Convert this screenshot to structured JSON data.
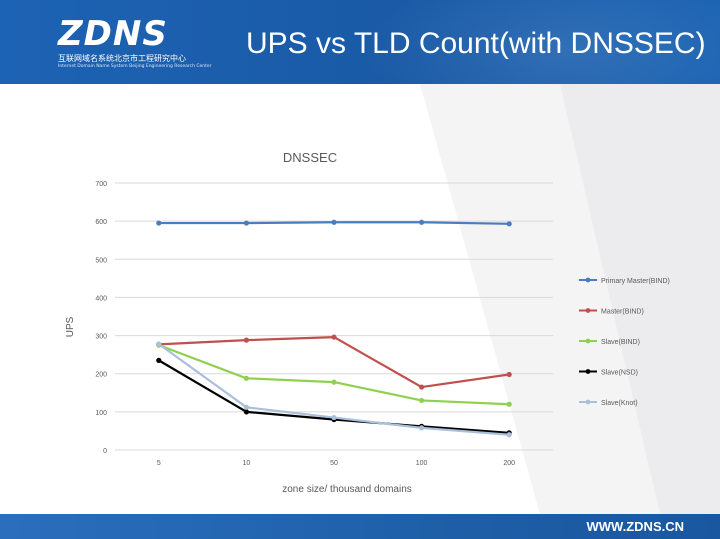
{
  "header": {
    "logo_text": "ZDNS",
    "logo_sub_cn": "互联网域名系统北京市工程研究中心",
    "logo_sub_en": "Internet Domain Name System Beijing Engineering Research Center",
    "title": "UPS vs TLD Count(with DNSSEC)"
  },
  "footer": {
    "url": "WWW.ZDNS.CN"
  },
  "colors": {
    "header_blue": "#1d63b4",
    "series": [
      "#4a7dc0",
      "#c0504d",
      "#8fd14f",
      "#000000",
      "#a9bfdb"
    ]
  },
  "chart_data": {
    "type": "line",
    "title": "DNSSEC",
    "xlabel": "zone size/ thousand domains",
    "ylabel": "UPS",
    "categories": [
      "5",
      "10",
      "50",
      "100",
      "200"
    ],
    "ylim": [
      0,
      700
    ],
    "yticks": [
      "0",
      "100",
      "200",
      "300",
      "400",
      "500",
      "600",
      "700"
    ],
    "grid": true,
    "legend_position": "right",
    "series": [
      {
        "name": "Primary Master(BIND)",
        "color": "#4a7dc0",
        "values": [
          595,
          595,
          597,
          597,
          593
        ]
      },
      {
        "name": "Master(BIND)",
        "color": "#c0504d",
        "values": [
          277,
          288,
          296,
          165,
          198
        ]
      },
      {
        "name": "Slave(BIND)",
        "color": "#8fd14f",
        "values": [
          275,
          188,
          178,
          130,
          120
        ]
      },
      {
        "name": "Slave(NSD)",
        "color": "#000000",
        "values": [
          235,
          100,
          80,
          62,
          45
        ]
      },
      {
        "name": "Slave(Knot)",
        "color": "#a9bfdb",
        "values": [
          278,
          112,
          85,
          58,
          40
        ]
      }
    ]
  }
}
